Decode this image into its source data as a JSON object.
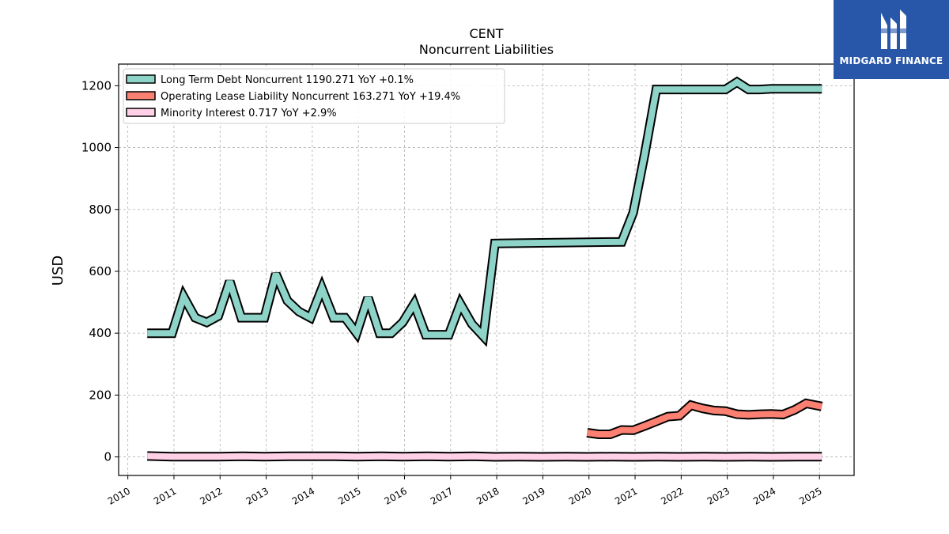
{
  "chart_data": {
    "type": "line",
    "title": "CENT",
    "subtitle": "Noncurrent  Liabilities",
    "ylabel": "USD",
    "xlabel": "",
    "xlim": [
      2009.8,
      2025.75
    ],
    "ylim": [
      -60,
      1270
    ],
    "yticks": [
      0,
      200,
      400,
      600,
      800,
      1000,
      1200
    ],
    "xticks": [
      "2010",
      "2011",
      "2012",
      "2013",
      "2014",
      "2015",
      "2016",
      "2017",
      "2018",
      "2019",
      "2020",
      "2021",
      "2022",
      "2023",
      "2024",
      "2025"
    ],
    "grid": true,
    "legend_position": "top-left",
    "series": [
      {
        "name": "Long Term Debt Noncurrent  1190.271 YoY +0.1%",
        "color": "#8dd3c7",
        "x": [
          2010.42,
          2010.67,
          2010.96,
          2011.21,
          2011.46,
          2011.71,
          2011.96,
          2012.21,
          2012.46,
          2012.71,
          2012.96,
          2013.21,
          2013.46,
          2013.71,
          2013.96,
          2014.21,
          2014.46,
          2014.71,
          2014.96,
          2015.21,
          2015.46,
          2015.71,
          2015.96,
          2016.21,
          2016.46,
          2016.71,
          2016.96,
          2017.21,
          2017.46,
          2017.71,
          2017.96,
          2018.96,
          2019.96,
          2020.71,
          2020.96,
          2021.21,
          2021.46,
          2021.71,
          2021.96,
          2022.21,
          2022.46,
          2022.71,
          2022.96,
          2023.21,
          2023.46,
          2023.71,
          2023.96,
          2024.21,
          2024.46,
          2024.71,
          2025.05
        ],
        "values": [
          400,
          400,
          400,
          518,
          450,
          435,
          455,
          568,
          450,
          450,
          450,
          592,
          505,
          470,
          450,
          545,
          450,
          450,
          400,
          515,
          400,
          400,
          435,
          495,
          395,
          395,
          395,
          495,
          430,
          390,
          690,
          692,
          694,
          695,
          790,
          980,
          1188,
          1188,
          1188,
          1188,
          1188,
          1188,
          1188,
          1212,
          1188,
          1188,
          1190,
          1190,
          1190,
          1190,
          1190
        ]
      },
      {
        "name": "Operating Lease Liability Noncurrent  163.271 YoY +19.4%",
        "color": "#fb8072",
        "x": [
          2019.96,
          2020.21,
          2020.46,
          2020.71,
          2020.96,
          2021.21,
          2021.46,
          2021.71,
          2021.96,
          2022.21,
          2022.46,
          2022.71,
          2022.96,
          2023.21,
          2023.46,
          2023.71,
          2023.96,
          2024.21,
          2024.46,
          2024.71,
          2025.05
        ],
        "values": [
          78,
          73,
          73,
          87,
          86,
          100,
          115,
          130,
          133,
          167,
          157,
          150,
          148,
          138,
          136,
          138,
          139,
          137,
          152,
          173,
          163
        ]
      },
      {
        "name": "Minority Interest  0.717 YoY +2.9%",
        "color": "#ffd0e6",
        "x": [
          2010.42,
          2010.96,
          2011.5,
          2011.96,
          2012.5,
          2012.96,
          2013.5,
          2013.96,
          2014.5,
          2014.96,
          2015.5,
          2015.96,
          2016.5,
          2016.96,
          2017.5,
          2017.96,
          2018.5,
          2018.96,
          2019.5,
          2019.96,
          2020.5,
          2020.96,
          2021.5,
          2021.96,
          2022.5,
          2022.96,
          2023.5,
          2023.96,
          2024.5,
          2025.05
        ],
        "values": [
          3,
          1,
          1,
          1,
          2,
          1,
          2,
          2,
          2,
          1,
          2,
          1,
          2,
          1,
          2,
          0,
          1,
          0,
          1,
          0,
          1,
          0,
          1,
          0,
          1,
          0,
          1,
          0,
          1,
          0.7
        ]
      }
    ]
  },
  "logo": {
    "text": "MIDGARD FINANCE",
    "background": "#2856a8"
  }
}
